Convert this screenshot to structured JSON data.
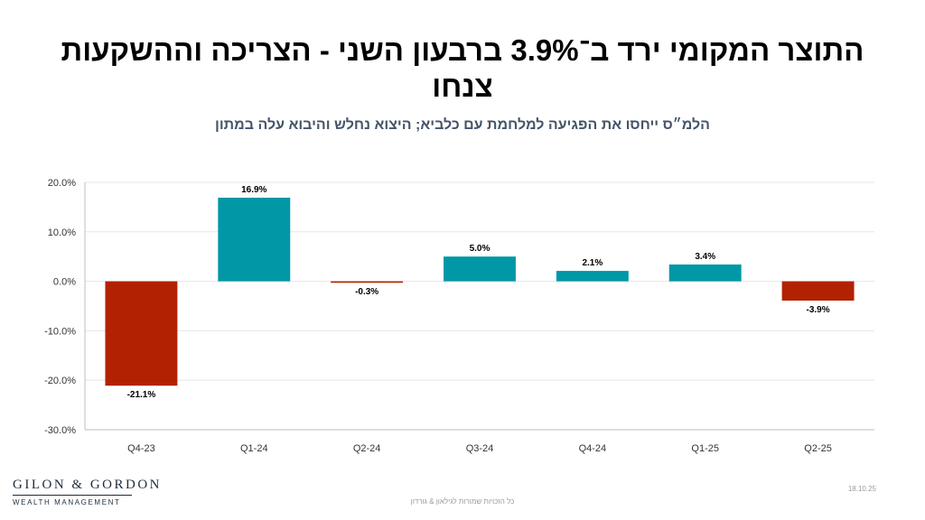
{
  "header": {
    "title": "התוצר המקומי ירד ב־3.9% ברבעון השני - הצריכה וההשקעות צנחו",
    "subtitle": "הלמ״ס ייחסו את הפגיעה למלחמת עם כלביא; היצוא נחלש והיבוא עלה במתון"
  },
  "chart_data": {
    "type": "bar",
    "title": "התוצר המקומי ירד ב־3.9% ברבעון השני - הצריכה וההשקעות צנחו",
    "xlabel": "",
    "ylabel": "",
    "categories": [
      "Q4-23",
      "Q1-24",
      "Q2-24",
      "Q3-24",
      "Q4-24",
      "Q1-25",
      "Q2-25"
    ],
    "values": [
      -21.1,
      16.9,
      -0.3,
      5.0,
      2.1,
      3.4,
      -3.9
    ],
    "data_labels": [
      "-21.1%",
      "16.9%",
      "-0.3%",
      "5.0%",
      "2.1%",
      "3.4%",
      "-3.9%"
    ],
    "ylim": [
      -30,
      20
    ],
    "yticks": [
      20,
      10,
      0,
      -10,
      -20,
      -30
    ],
    "ytick_labels": [
      "20.0%",
      "10.0%",
      "0.0%",
      "-10.0%",
      "-20.0%",
      "-30.0%"
    ],
    "grid": true,
    "colors": {
      "positive": "#0097a7",
      "negative": "#b22200",
      "grid": "#e6e6e6",
      "axis": "#bfbfbf"
    }
  },
  "footer": {
    "logo_name": "GILON & GORDON",
    "logo_sub": "WEALTH MANAGEMENT",
    "copyright": "כל הזכויות שמורות לגילאון & גורדון",
    "date": "18.10.25"
  }
}
